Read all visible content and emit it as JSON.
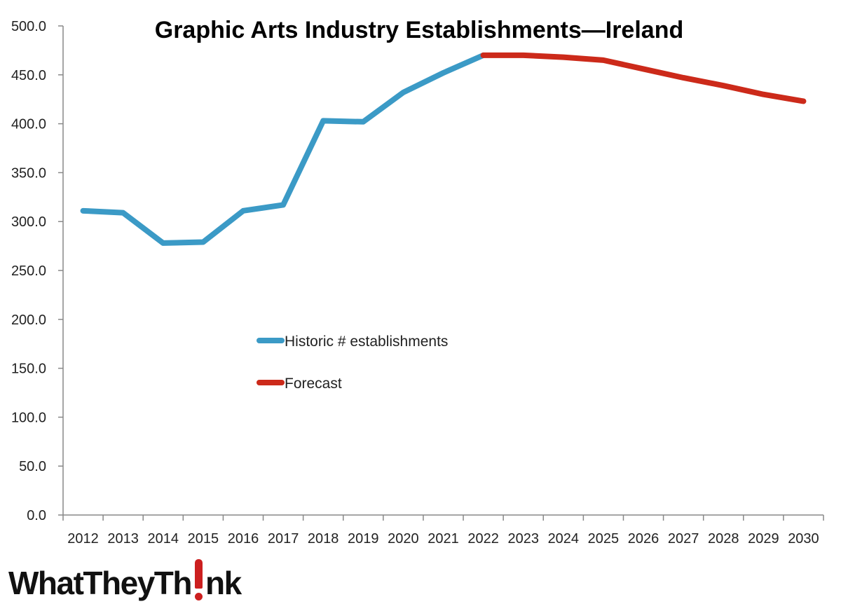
{
  "chart_data": {
    "type": "line",
    "title": "Graphic Arts Industry Establishments—Ireland",
    "xlabel": "",
    "ylabel": "",
    "ylim": [
      0,
      500
    ],
    "y_ticks": [
      "0.0",
      "50.0",
      "100.0",
      "150.0",
      "200.0",
      "250.0",
      "300.0",
      "350.0",
      "400.0",
      "450.0",
      "500.0"
    ],
    "x": [
      "2012",
      "2013",
      "2014",
      "2015",
      "2016",
      "2017",
      "2018",
      "2019",
      "2020",
      "2021",
      "2022",
      "2023",
      "2024",
      "2025",
      "2026",
      "2027",
      "2028",
      "2029",
      "2030"
    ],
    "grid": false,
    "legend_position": "center-left",
    "series": [
      {
        "name": "Historic # establishments",
        "color": "#3b9ac6",
        "x": [
          "2012",
          "2013",
          "2014",
          "2015",
          "2016",
          "2017",
          "2018",
          "2019",
          "2020",
          "2021",
          "2022"
        ],
        "values": [
          311,
          309,
          278,
          279,
          311,
          317,
          403,
          402,
          432,
          452,
          470
        ]
      },
      {
        "name": "Forecast",
        "color": "#cc2a1a",
        "x": [
          "2022",
          "2023",
          "2024",
          "2025",
          "2026",
          "2027",
          "2028",
          "2029",
          "2030"
        ],
        "values": [
          470,
          470,
          468,
          465,
          456,
          447,
          439,
          430,
          423
        ]
      }
    ]
  },
  "logo": {
    "text": "WhatTheyThink",
    "accent_color": "#cc1f1f"
  }
}
